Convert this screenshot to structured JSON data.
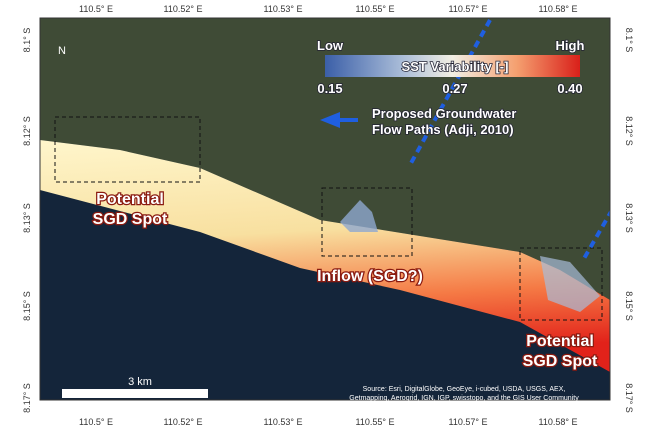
{
  "map": {
    "lon_labels": [
      "110.5° E",
      "110.52° E",
      "110.53° E",
      "110.55° E",
      "110.57° E",
      "110.58° E"
    ],
    "lat_labels": [
      "8.1° S",
      "8.12° S",
      "8.13° S",
      "8.15° S",
      "8.17° S"
    ],
    "north": "N",
    "legend": {
      "low": "Low",
      "high": "High",
      "title": "SST Variability [-]",
      "ticks": [
        "0.15",
        "0.27",
        "0.40"
      ]
    },
    "flow_label": [
      "Proposed Groundwater",
      "Flow Paths (Adji, 2010)"
    ],
    "spot_left": [
      "Potential",
      "SGD Spot"
    ],
    "inflow": "Inflow (SGD?)",
    "spot_right": [
      "Potential",
      "SGD Spot"
    ],
    "scale": "3 km",
    "source": [
      "Source: Esri, DigitalGlobe, GeoEye, i-cubed, USDA, USGS, AEX,",
      "Getmapping, Aerogrid, IGN, IGP, swisstopo, and the GIS User Community"
    ]
  }
}
